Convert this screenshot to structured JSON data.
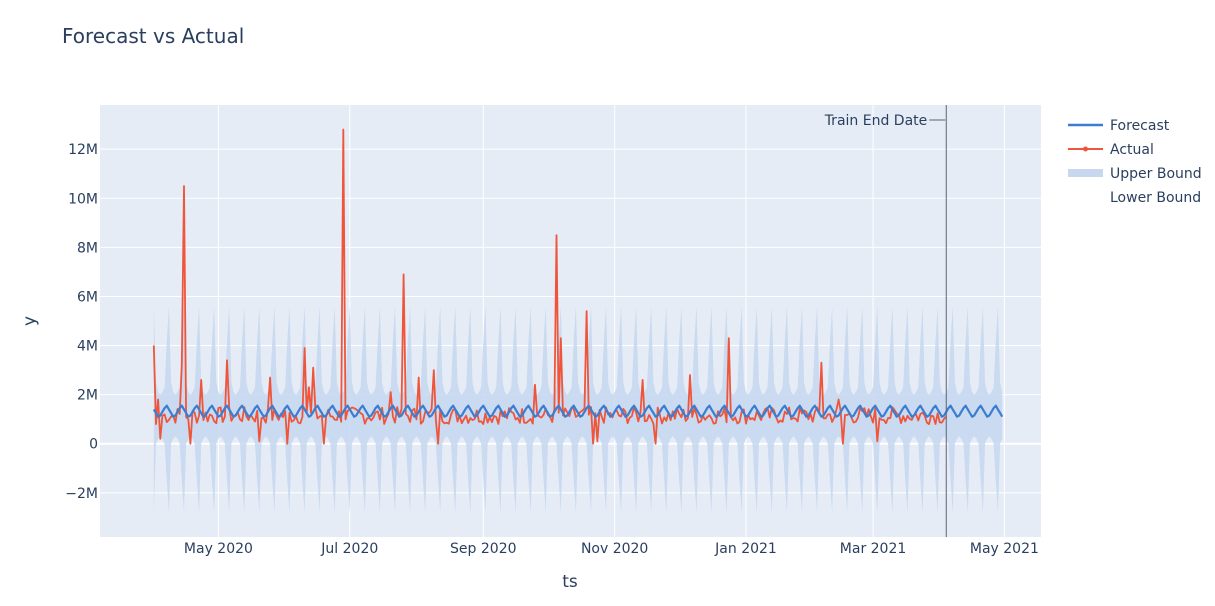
{
  "chart_data": {
    "type": "line",
    "title": "Forecast vs Actual",
    "xlabel": "ts",
    "ylabel": "y",
    "x_ticks": [
      "May 2020",
      "Jul 2020",
      "Sep 2020",
      "Nov 2020",
      "Jan 2021",
      "Mar 2021",
      "May 2021"
    ],
    "x_tick_dates": [
      "2020-05-01",
      "2020-07-01",
      "2020-09-01",
      "2020-11-01",
      "2021-01-01",
      "2021-03-01",
      "2021-05-01"
    ],
    "xlim": [
      "2020-03-07",
      "2021-05-18"
    ],
    "y_ticks": [
      "−2M",
      "0",
      "2M",
      "4M",
      "6M",
      "8M",
      "10M",
      "12M"
    ],
    "y_tick_values": [
      -2000000,
      0,
      2000000,
      4000000,
      6000000,
      8000000,
      10000000,
      12000000
    ],
    "ylim": [
      -3800000,
      13800000
    ],
    "grid": true,
    "legend_position": "right",
    "annotation": {
      "text": "Train End Date",
      "date": "2021-04-04"
    },
    "series": [
      {
        "name": "Forecast",
        "kind": "weekly-seasonal",
        "start": "2020-04-01",
        "end": "2021-04-30",
        "weekly_pattern": [
          1400000,
          1250000,
          1100000,
          1150000,
          1300000,
          1450000,
          1550000
        ]
      },
      {
        "name": "Actual",
        "start": "2020-04-01",
        "end": "2021-04-04",
        "baseline": [
          800000,
          1500000
        ],
        "peaks": [
          {
            "date": "2020-04-01",
            "y": 4000000
          },
          {
            "date": "2020-04-03",
            "y": 1800000
          },
          {
            "date": "2020-04-14",
            "y": 3200000
          },
          {
            "date": "2020-04-15",
            "y": 10500000
          },
          {
            "date": "2020-04-23",
            "y": 2600000
          },
          {
            "date": "2020-05-05",
            "y": 3400000
          },
          {
            "date": "2020-05-25",
            "y": 2700000
          },
          {
            "date": "2020-06-10",
            "y": 3900000
          },
          {
            "date": "2020-06-12",
            "y": 2300000
          },
          {
            "date": "2020-06-14",
            "y": 3100000
          },
          {
            "date": "2020-06-28",
            "y": 12800000
          },
          {
            "date": "2020-07-20",
            "y": 2100000
          },
          {
            "date": "2020-07-26",
            "y": 6900000
          },
          {
            "date": "2020-08-02",
            "y": 2700000
          },
          {
            "date": "2020-08-09",
            "y": 3000000
          },
          {
            "date": "2020-09-25",
            "y": 2400000
          },
          {
            "date": "2020-10-05",
            "y": 8500000
          },
          {
            "date": "2020-10-07",
            "y": 4300000
          },
          {
            "date": "2020-10-19",
            "y": 5400000
          },
          {
            "date": "2020-11-14",
            "y": 2600000
          },
          {
            "date": "2020-12-06",
            "y": 2800000
          },
          {
            "date": "2020-12-24",
            "y": 4300000
          },
          {
            "date": "2021-02-05",
            "y": 3300000
          },
          {
            "date": "2021-02-13",
            "y": 1800000
          }
        ],
        "dips": [
          {
            "date": "2020-04-02",
            "y": 800000
          },
          {
            "date": "2020-04-04",
            "y": 200000
          },
          {
            "date": "2020-04-18",
            "y": 0
          },
          {
            "date": "2020-05-20",
            "y": 100000
          },
          {
            "date": "2020-06-02",
            "y": 0
          },
          {
            "date": "2020-06-19",
            "y": 0
          },
          {
            "date": "2020-08-11",
            "y": 0
          },
          {
            "date": "2020-10-22",
            "y": 0
          },
          {
            "date": "2020-10-24",
            "y": 100000
          },
          {
            "date": "2020-11-20",
            "y": 0
          },
          {
            "date": "2021-02-15",
            "y": 0
          },
          {
            "date": "2021-03-03",
            "y": 100000
          }
        ]
      },
      {
        "name": "Upper Bound",
        "kind": "weekly-seasonal",
        "start": "2020-04-01",
        "end": "2021-04-30",
        "weekly_pattern": [
          5600000,
          2500000,
          2100000,
          2000000,
          2100000,
          2300000,
          4200000
        ]
      },
      {
        "name": "Lower Bound",
        "kind": "weekly-seasonal",
        "start": "2020-04-01",
        "end": "2021-04-30",
        "weekly_pattern": [
          -2800000,
          0,
          200000,
          300000,
          200000,
          0,
          -1500000
        ]
      }
    ],
    "colors": {
      "forecast": "#3a7dd1",
      "actual": "#ef553b",
      "band": "#c6d7ef",
      "plot_bg": "#e5ecf6",
      "grid": "#ffffff",
      "annotation_line": "#5b6475"
    }
  }
}
